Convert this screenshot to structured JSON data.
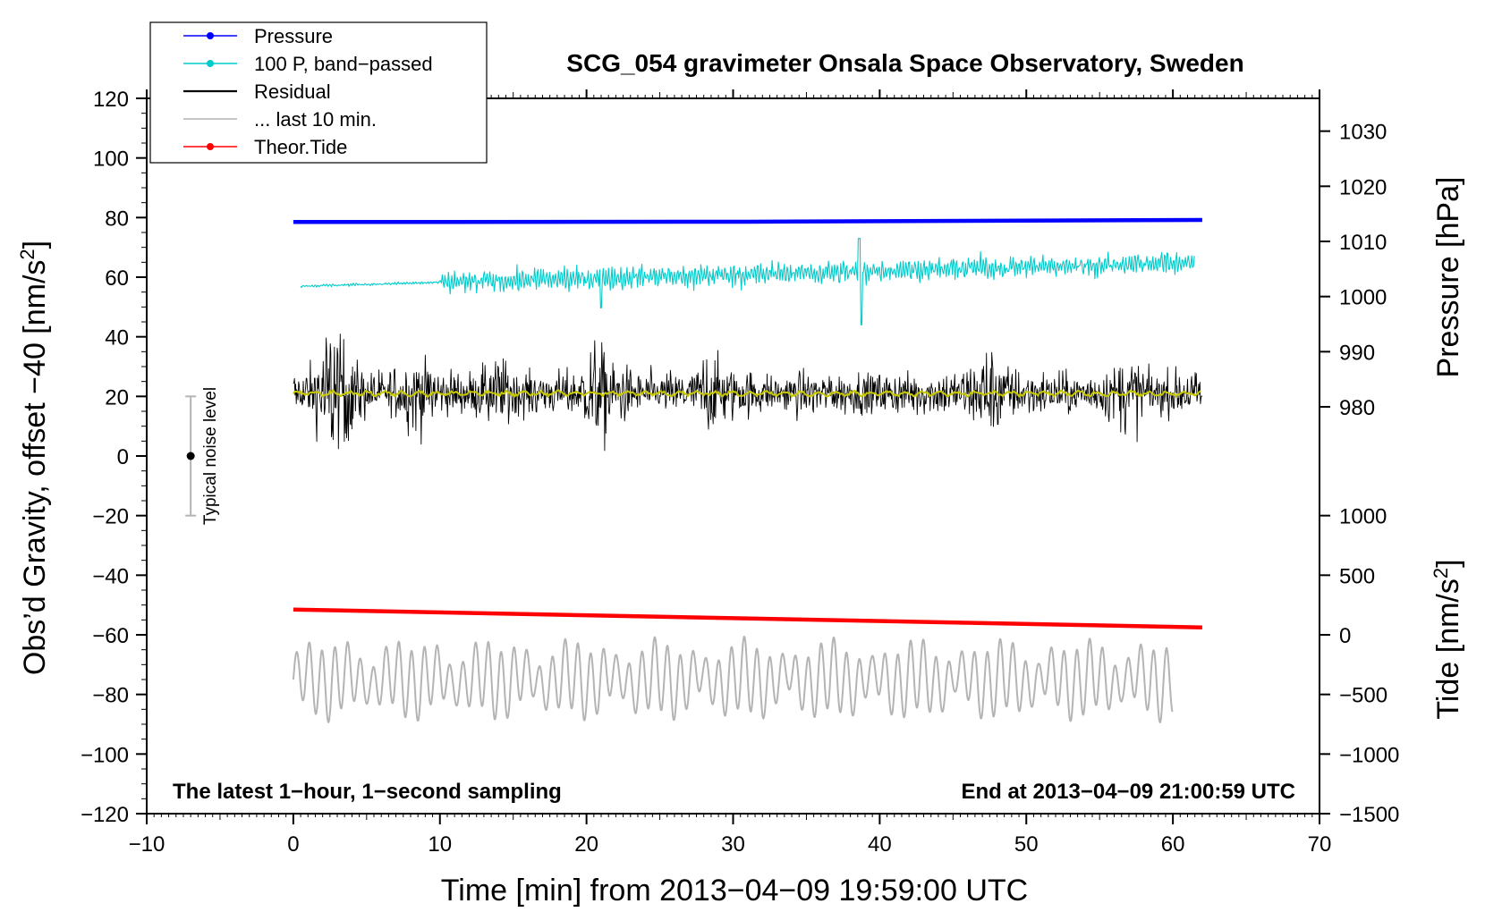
{
  "chart_data": {
    "type": "line",
    "title": "SCG_054 gravimeter Onsala Space Observatory, Sweden",
    "xlabel": "Time [min] from 2013−04−09 19:59:00 UTC",
    "ylabel_left": "Obs’d Gravity, offset −40 [nm/s",
    "ylabel_left_sup": "2",
    "ylabel_left_end": "]",
    "ylabel_right_top": "Pressure [hPa]",
    "ylabel_right_bottom": "Tide [nm/s",
    "ylabel_right_bottom_sup": "2",
    "ylabel_right_bottom_end": "]",
    "xlim": [
      -10,
      70
    ],
    "ylim": [
      -120,
      120
    ],
    "x_ticks": [
      -10,
      0,
      10,
      20,
      30,
      40,
      50,
      60,
      70
    ],
    "x_tick_labels": [
      "−10",
      "0",
      "10",
      "20",
      "30",
      "40",
      "50",
      "60",
      "70"
    ],
    "y_ticks": [
      120,
      100,
      80,
      60,
      40,
      20,
      0,
      -20,
      -40,
      -60,
      -80,
      -100,
      -120
    ],
    "y_tick_labels": [
      "120",
      "100",
      "80",
      "60",
      "40",
      "20",
      "0",
      "−20",
      "−40",
      "−60",
      "−80",
      "−100",
      "−120"
    ],
    "pressure_axis": {
      "ticks": [
        1030,
        1020,
        1010,
        1000,
        990,
        980
      ],
      "tick_labels": [
        "1030",
        "1020",
        "1010",
        "1000",
        "990",
        "980"
      ],
      "gravity_equiv": [
        109,
        90.5,
        72,
        53.5,
        35,
        16.5
      ]
    },
    "tide_axis": {
      "ticks": [
        1000,
        500,
        0,
        -500,
        -1000,
        -1500
      ],
      "tick_labels": [
        "1000",
        "500",
        "0",
        "−500",
        "−1000",
        "−1500"
      ],
      "gravity_equiv": [
        -20,
        -40,
        -60,
        -80,
        -100,
        -120
      ]
    },
    "legend": [
      {
        "label": "Pressure",
        "color": "#0000ff",
        "marker": true
      },
      {
        "label": "100 P, band−passed",
        "color": "#00cccc",
        "marker": true
      },
      {
        "label": "Residual",
        "color": "#000000",
        "marker": false
      },
      {
        "label": "... last 10 min.",
        "color": "#b4b4b4",
        "marker": false
      },
      {
        "label": "Theor.Tide",
        "color": "#ff0000",
        "marker": true
      }
    ],
    "series": [
      {
        "name": "Pressure",
        "color": "#0000ff",
        "x": [
          0,
          31,
          62
        ],
        "y": [
          78.5,
          78.6,
          79.2
        ]
      },
      {
        "name": "100 P, band-passed",
        "color": "#00cccc",
        "x_range": [
          0.5,
          61.5
        ],
        "baseline": 57,
        "baseline_end": 65,
        "amplitude": 4
      },
      {
        "name": "Residual",
        "color": "#000000",
        "x_range": [
          0,
          62
        ],
        "baseline": 21,
        "amplitude": 12
      },
      {
        "name": "Residual smoothed",
        "color": "#c8c800",
        "x_range": [
          0,
          62
        ],
        "baseline": 21
      },
      {
        "name": "Theor.Tide",
        "color": "#ff0000",
        "x": [
          0,
          62
        ],
        "y": [
          -51.5,
          -57.5
        ]
      },
      {
        "name": "... last 10 min.",
        "color": "#b4b4b4",
        "x_range": [
          0,
          60
        ],
        "baseline": -75,
        "amplitude": 12
      }
    ],
    "noise_level": {
      "label": "Typical noise level",
      "x": -7,
      "center": 0,
      "low": -20,
      "high": 20
    },
    "note_left": "The latest 1−hour, 1−second sampling",
    "note_right": "End at 2013−04−09 21:00:59 UTC"
  },
  "colors": {
    "pressure": "#0000ff",
    "band": "#00cccc",
    "residual": "#000000",
    "smooth": "#c8c800",
    "tide": "#ff0000",
    "last10": "#b4b4b4"
  }
}
